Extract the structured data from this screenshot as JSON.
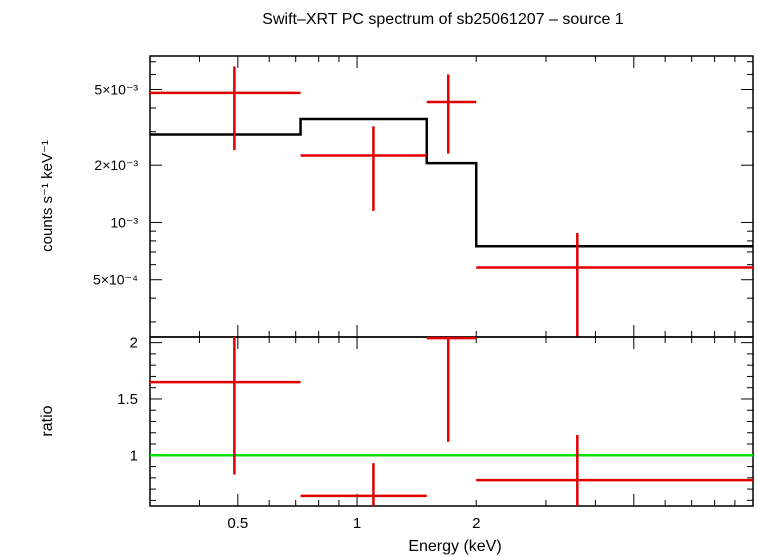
{
  "chart_data": [
    {
      "type": "scatter",
      "panel": "spectrum",
      "title": "Swift–XRT PC spectrum of sb25061207 – source 1",
      "xlabel": "Energy (keV)",
      "ylabel": "counts s⁻¹ keV⁻¹",
      "x_scale": "log",
      "y_scale": "log",
      "xlim": [
        0.3,
        10
      ],
      "ylim": [
        0.00025,
        0.0075
      ],
      "ytick_labels": [
        {
          "value": 0.005,
          "label": "5×10⁻³"
        },
        {
          "value": 0.002,
          "label": "2×10⁻³"
        },
        {
          "value": 0.001,
          "label": "10⁻³"
        },
        {
          "value": 0.0005,
          "label": "5×10⁻⁴"
        }
      ],
      "data": {
        "color": "#e00000",
        "points": [
          {
            "x": 0.49,
            "xlo": 0.3,
            "xhi": 0.72,
            "y": 0.0048,
            "ylo": 0.0024,
            "yhi": 0.0066
          },
          {
            "x": 1.1,
            "xlo": 0.72,
            "xhi": 1.5,
            "y": 0.00225,
            "ylo": 0.00115,
            "yhi": 0.0032
          },
          {
            "x": 1.7,
            "xlo": 1.5,
            "xhi": 2.0,
            "y": 0.0043,
            "ylo": 0.0023,
            "yhi": 0.006
          },
          {
            "x": 3.6,
            "xlo": 2.0,
            "xhi": 10.0,
            "y": 0.00058,
            "ylo": 0.00025,
            "yhi": 0.00088
          }
        ]
      },
      "model": {
        "color": "#000000",
        "steps": [
          {
            "xlo": 0.3,
            "xhi": 0.72,
            "y": 0.0029
          },
          {
            "xlo": 0.72,
            "xhi": 1.5,
            "y": 0.0035
          },
          {
            "xlo": 1.5,
            "xhi": 2.0,
            "y": 0.00205
          },
          {
            "xlo": 2.0,
            "xhi": 10.0,
            "y": 0.00075
          }
        ]
      }
    },
    {
      "type": "scatter",
      "panel": "ratio",
      "xlabel": "Energy (keV)",
      "ylabel": "ratio",
      "x_scale": "log",
      "y_scale": "linear",
      "xlim": [
        0.3,
        10
      ],
      "ylim": [
        0.55,
        2.05
      ],
      "xtick_labels": [
        {
          "value": 0.5,
          "label": "0.5"
        },
        {
          "value": 1,
          "label": "1"
        },
        {
          "value": 2,
          "label": "2"
        }
      ],
      "ytick_labels": [
        {
          "value": 1,
          "label": "1"
        },
        {
          "value": 1.5,
          "label": "1.5"
        },
        {
          "value": 2,
          "label": "2"
        }
      ],
      "reference_line": {
        "y": 1,
        "color": "#00e000"
      },
      "data": {
        "color": "#e00000",
        "points": [
          {
            "x": 0.49,
            "xlo": 0.3,
            "xhi": 0.72,
            "y": 1.65,
            "ylo": 0.83,
            "yhi": 2.05
          },
          {
            "x": 1.1,
            "xlo": 0.72,
            "xhi": 1.5,
            "y": 0.64,
            "ylo": 0.55,
            "yhi": 0.93
          },
          {
            "x": 1.7,
            "xlo": 1.5,
            "xhi": 2.0,
            "y": 2.04,
            "ylo": 1.12,
            "yhi": 2.05
          },
          {
            "x": 3.6,
            "xlo": 2.0,
            "xhi": 10.0,
            "y": 0.78,
            "ylo": 0.55,
            "yhi": 1.18
          }
        ]
      }
    }
  ]
}
